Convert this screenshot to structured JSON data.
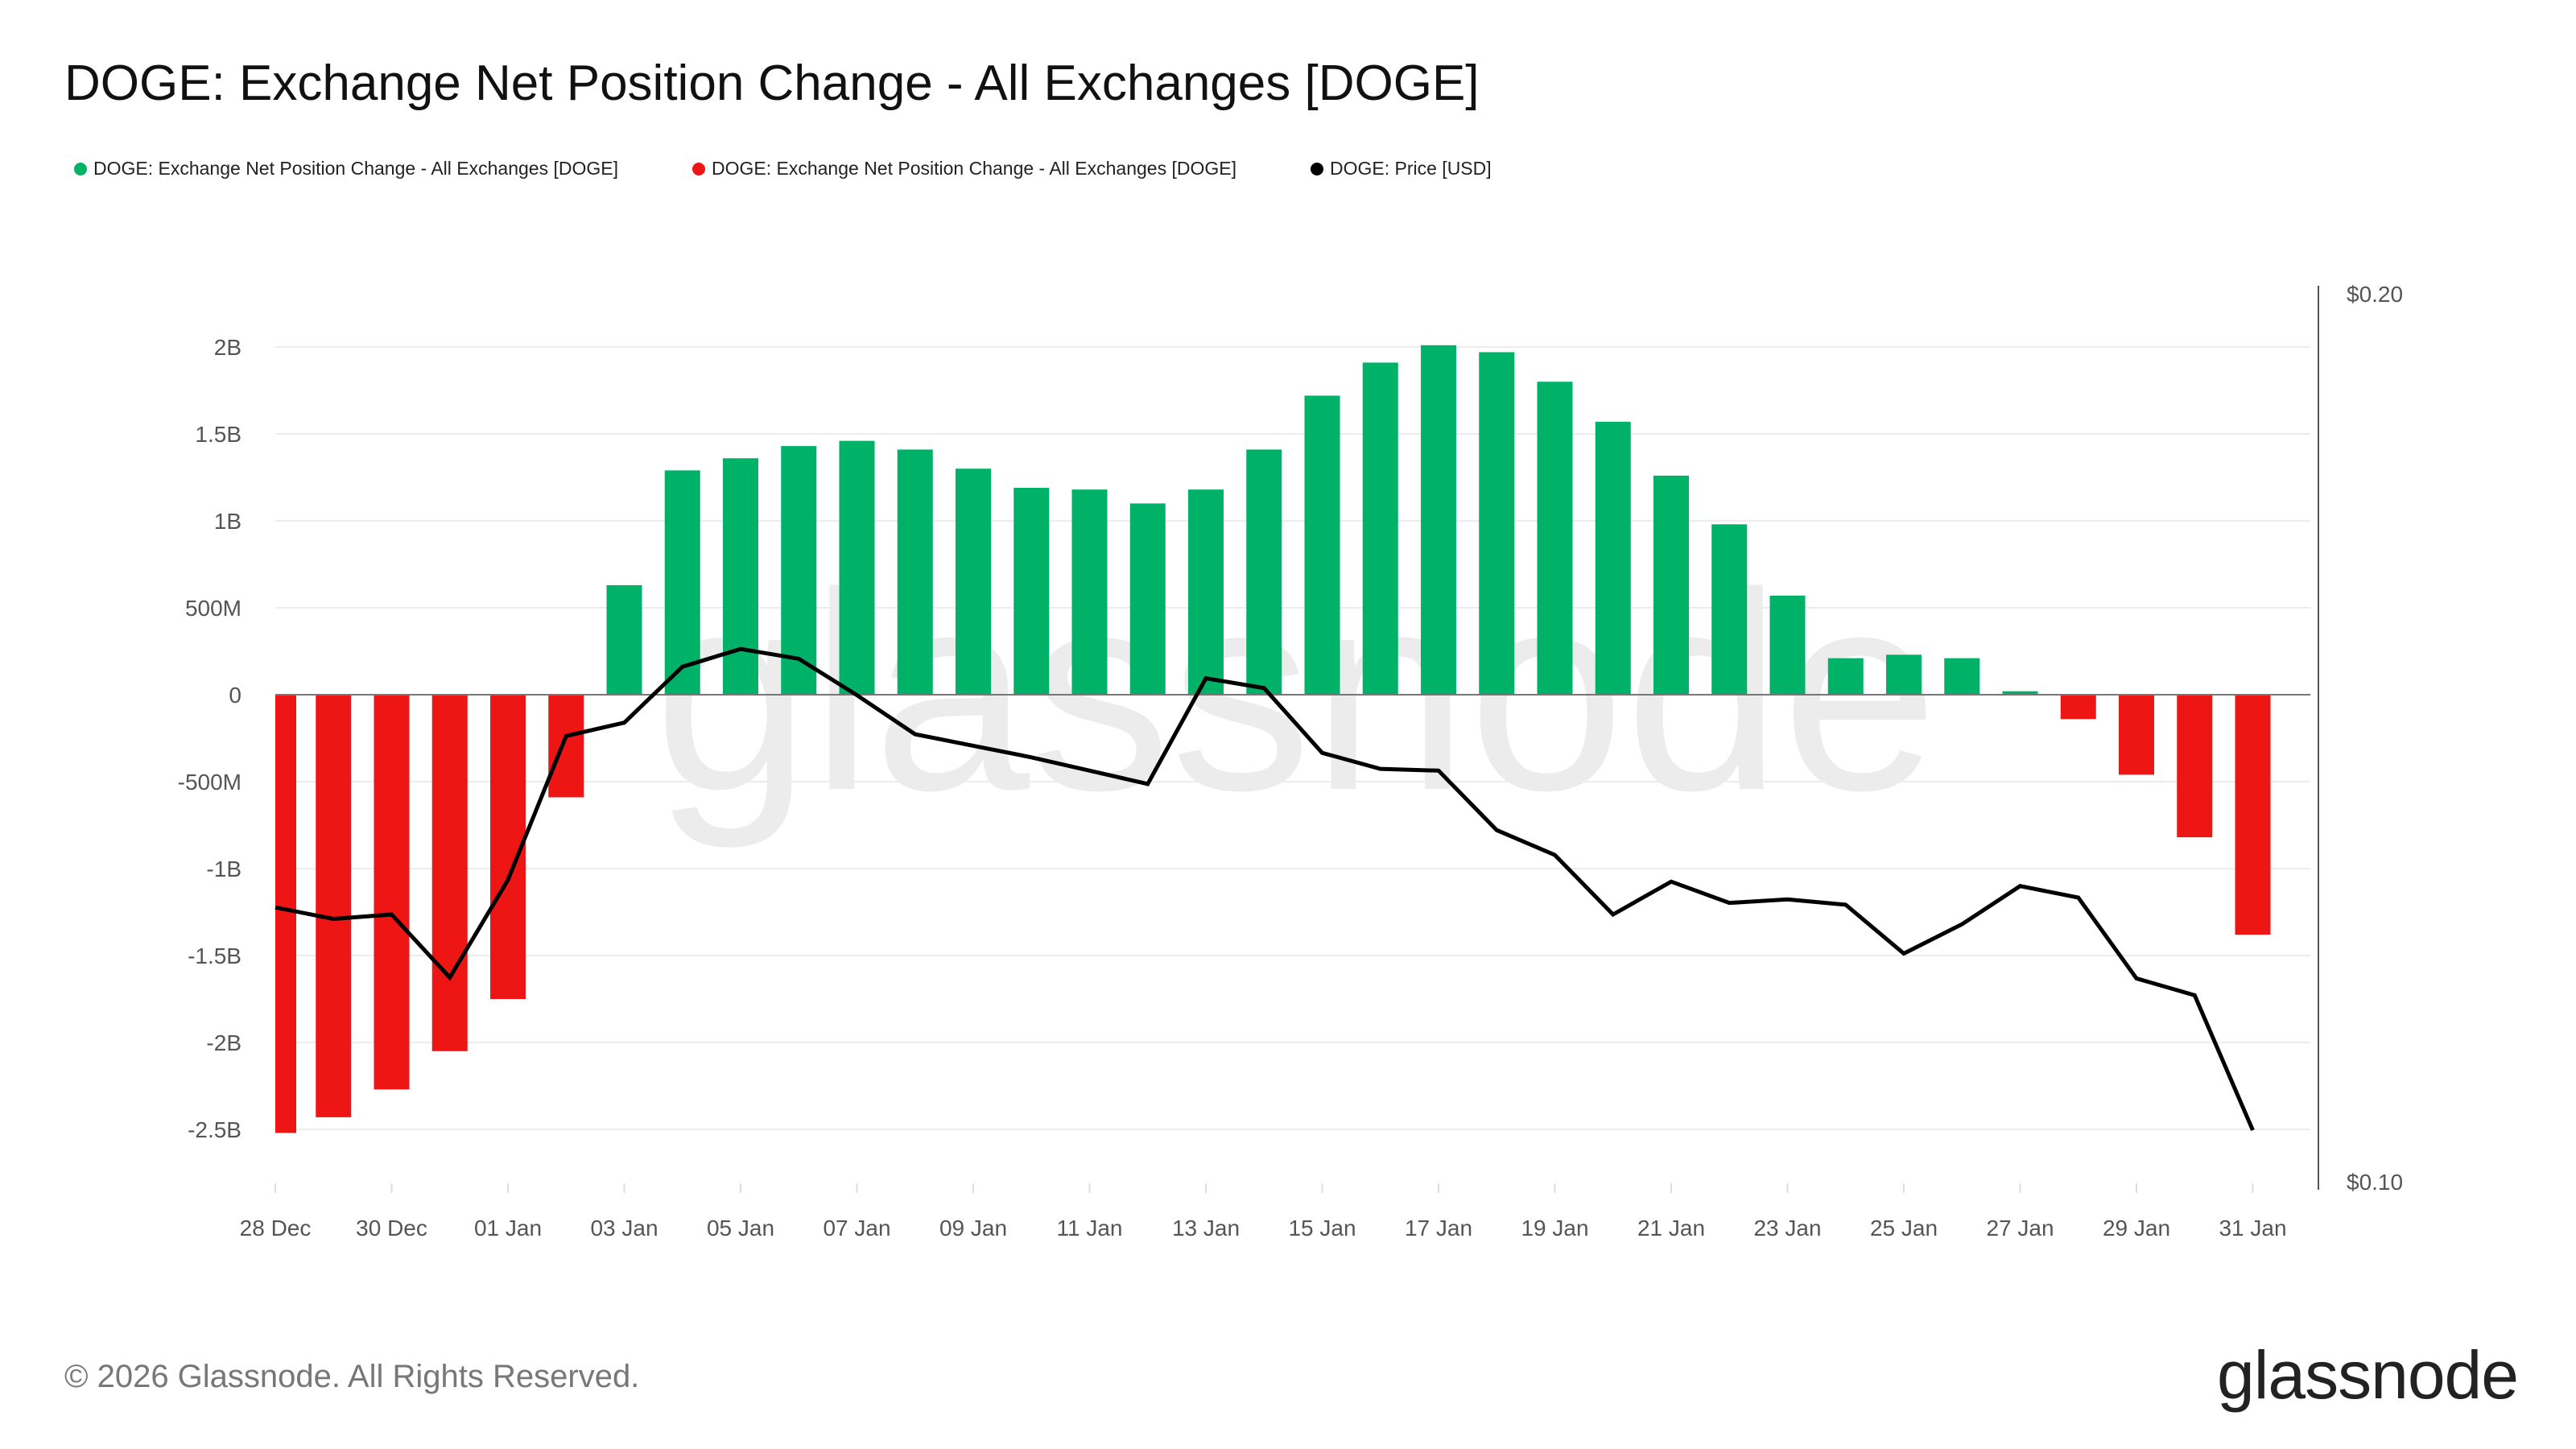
{
  "title": "DOGE: Exchange Net Position Change - All Exchanges [DOGE]",
  "legend": [
    {
      "label": "DOGE: Exchange Net Position Change - All Exchanges [DOGE]",
      "color": "#00b168"
    },
    {
      "label": "DOGE: Exchange Net Position Change - All Exchanges [DOGE]",
      "color": "#ee1515"
    },
    {
      "label": "DOGE: Price [USD]",
      "color": "#000000"
    }
  ],
  "footer": "© 2026 Glassnode. All Rights Reserved.",
  "logo": "glassnode",
  "watermark": "glassnode",
  "chart_data": {
    "type": "bar+line",
    "title": "DOGE: Exchange Net Position Change - All Exchanges [DOGE]",
    "grid": true,
    "legend_placement": "top-left",
    "x_ticks": [
      "28 Dec",
      "30 Dec",
      "01 Jan",
      "03 Jan",
      "05 Jan",
      "07 Jan",
      "09 Jan",
      "11 Jan",
      "13 Jan",
      "15 Jan",
      "17 Jan",
      "19 Jan",
      "21 Jan",
      "23 Jan",
      "25 Jan",
      "27 Jan",
      "29 Jan",
      "31 Jan"
    ],
    "x": [
      "28 Dec",
      "29 Dec",
      "30 Dec",
      "31 Dec",
      "01 Jan",
      "02 Jan",
      "03 Jan",
      "04 Jan",
      "05 Jan",
      "06 Jan",
      "07 Jan",
      "08 Jan",
      "09 Jan",
      "10 Jan",
      "11 Jan",
      "12 Jan",
      "13 Jan",
      "14 Jan",
      "15 Jan",
      "16 Jan",
      "17 Jan",
      "18 Jan",
      "19 Jan",
      "20 Jan",
      "21 Jan",
      "22 Jan",
      "23 Jan",
      "24 Jan",
      "25 Jan",
      "26 Jan",
      "27 Jan",
      "28 Jan",
      "29 Jan",
      "30 Jan",
      "31 Jan"
    ],
    "y_left": {
      "ticks": [
        2000000000.0,
        1500000000.0,
        1000000000.0,
        500000000.0,
        0,
        -500000000.0,
        -1000000000.0,
        -1500000000.0,
        -2000000000.0,
        -2500000000.0
      ],
      "tick_labels": [
        "2B",
        "1.5B",
        "1B",
        "500M",
        "0",
        "-500M",
        "-1B",
        "-1.5B",
        "-2B",
        "-2.5B"
      ],
      "range": [
        -2800000000.0,
        2200000000.0
      ]
    },
    "y_right": {
      "tick_labels": [
        "$0.20",
        "$0.10"
      ],
      "ticks": [
        0.2,
        0.1
      ],
      "range": [
        0.1,
        0.2
      ]
    },
    "series": [
      {
        "type": "bar",
        "positive_color": "#00b168",
        "negative_color": "#ee1515",
        "values": [
          -2520000000.0,
          -2430000000.0,
          -2270000000.0,
          -2050000000.0,
          -1750000000.0,
          -590000000.0,
          630000000.0,
          1290000000.0,
          1360000000.0,
          1430000000.0,
          1460000000.0,
          1410000000.0,
          1300000000.0,
          1190000000.0,
          1180000000.0,
          1100000000.0,
          1180000000.0,
          1410000000.0,
          1720000000.0,
          1910000000.0,
          2010000000.0,
          1970000000.0,
          1800000000.0,
          1570000000.0,
          1260000000.0,
          980000000.0,
          570000000.0,
          210000000.0,
          230000000.0,
          210000000.0,
          20000000.0,
          -140000000.0,
          -460000000.0,
          -820000000.0,
          -1380000000.0
        ]
      },
      {
        "type": "line",
        "axis": "right",
        "color": "#000000",
        "values": [
          0.1309,
          0.1296,
          0.1301,
          0.123,
          0.134,
          0.1502,
          0.1517,
          0.158,
          0.16,
          0.1589,
          0.1548,
          0.1504,
          0.1491,
          0.1478,
          0.1463,
          0.1448,
          0.1567,
          0.1556,
          0.1483,
          0.1465,
          0.1463,
          0.1396,
          0.1368,
          0.1301,
          0.1338,
          0.1314,
          0.1318,
          0.1312,
          0.1257,
          0.129,
          0.1333,
          0.132,
          0.1229,
          0.121,
          0.1058
        ]
      }
    ]
  }
}
